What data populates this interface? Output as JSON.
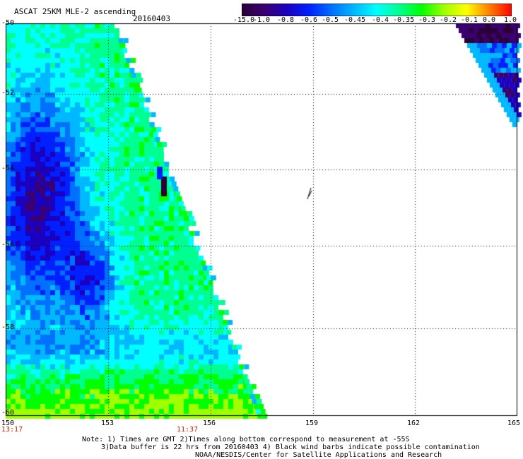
{
  "header": {
    "title": "ASCAT 25KM MLE-2 ascending",
    "date": "20160403"
  },
  "colorbar": {
    "labels": [
      "-15.0",
      "-1.0",
      "-0.8",
      "-0.6",
      "-0.5",
      "-0.45",
      "-0.4",
      "-0.35",
      "-0.3",
      "-0.2",
      "-0.1",
      "0.0",
      "1.0"
    ],
    "colors": [
      "#2a0036",
      "#3a0070",
      "#1c00c0",
      "#0020ff",
      "#0070ff",
      "#00b8ff",
      "#00ffff",
      "#00ff90",
      "#00ff00",
      "#a0ff00",
      "#ffff00",
      "#ff8000",
      "#ff0000"
    ]
  },
  "axes": {
    "lat_labels": [
      "-50",
      "-52",
      "-54",
      "-56",
      "-58",
      "-60"
    ],
    "lon_labels": [
      "150",
      "153",
      "156",
      "159",
      "162",
      "165"
    ]
  },
  "times": {
    "left": "13:17",
    "mid": "11:37"
  },
  "notes": {
    "line1": "Note: 1) Times are GMT 2)Times along bottom correspond to measurement at -55S",
    "line2": "3)Data buffer is 22 hrs from 20160403 4) Black wind barbs indicate possible contamination",
    "line3": "NOAA/NESDIS/Center for Satellite Applications and Research"
  },
  "map_data": {
    "lon_range": [
      150,
      165
    ],
    "lat_range": [
      -60,
      -50
    ],
    "grid": "dotted",
    "palette": [
      "#2a0036",
      "#3a0070",
      "#1c00c0",
      "#0020ff",
      "#0070ff",
      "#00b8ff",
      "#00ffff",
      "#00ff90",
      "#00ff00",
      "#a0ff00"
    ]
  }
}
